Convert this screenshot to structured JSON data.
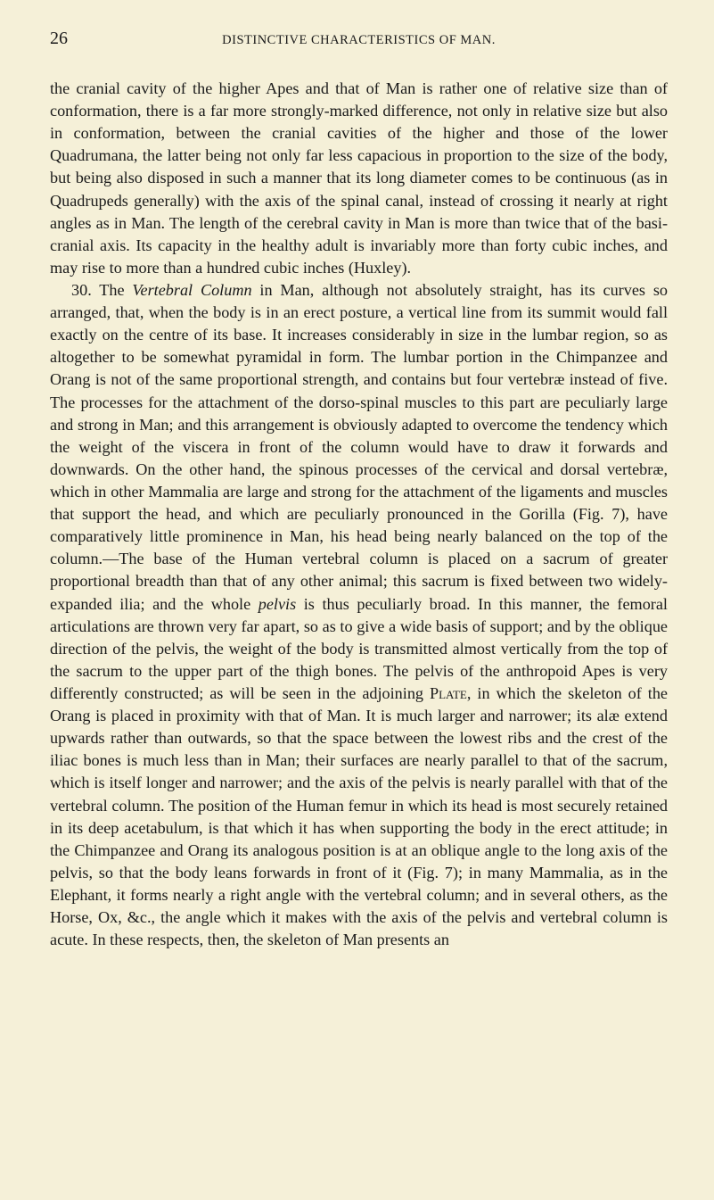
{
  "page": {
    "number": "26",
    "running_head": "DISTINCTIVE CHARACTERISTICS OF MAN.",
    "background_color": "#f5f0d8",
    "text_color": "#1a1a1a"
  },
  "paragraphs": {
    "p1": "the cranial cavity of the higher Apes and that of Man is rather one of relative size than of conformation, there is a far more strongly-marked difference, not only in relative size but also in conformation, between the cranial cavities of the higher and those of the lower Quadrumana, the latter being not only far less capacious in proportion to the size of the body, but being also disposed in such a manner that its long diameter comes to be continuous (as in Quadrupeds generally) with the axis of the spinal canal, instead of crossing it nearly at right angles as in Man. The length of the cerebral cavity in Man is more than twice that of the basi-cranial axis. Its capacity in the healthy adult is invariably more than forty cubic inches, and may rise to more than a hundred cubic inches (Huxley).",
    "p2_a": "30. The ",
    "p2_italic1": "Vertebral Column",
    "p2_b": " in Man, although not absolutely straight, has its curves so arranged, that, when the body is in an erect posture, a vertical line from its summit would fall exactly on the centre of its base. It increases considerably in size in the lumbar region, so as alto­gether to be somewhat pyramidal in form. The lumbar portion in the Chimpanzee and Orang is not of the same proportional strength, and con­tains but four vertebræ instead of five. The processes for the attachment of the dorso-spinal muscles to this part are peculiarly large and strong in Man; and this arrangement is obviously adapted to overcome the tendency which the weight of the viscera in front of the column would have to draw it forwards and downwards. On the other hand, the spinous processes of the cervical and dorsal vertebræ, which in other Mammalia are large and strong for the attachment of the ligaments and muscles that support the head, and which are peculiarly pronounced in the Gorilla (Fig. 7), have comparatively little prominence in Man, his head being nearly balanced on the top of the column.—The base of the Human vertebral column is placed on a sacrum of greater proportional breadth than that of any other animal; this sacrum is fixed between two widely-expanded ilia; and the whole ",
    "p2_italic2": "pelvis",
    "p2_c": " is thus peculiarly broad. In this manner, the femoral articulations are thrown very far apart, so as to give a wide basis of support; and by the oblique direction of the pelvis, the weight of the body is transmitted almost vertically from the top of the sacrum to the upper part of the thigh bones. The pelvis of the anthropoid Apes is very differently constructed; as will be seen in the adjoining ",
    "p2_sc1": "Plate",
    "p2_d": ", in which the skeleton of the Orang is placed in prox­imity with that of Man. It is much larger and narrower; its alæ extend upwards rather than outwards, so that the space between the lowest ribs and the crest of the iliac bones is much less than in Man; their surfaces are nearly parallel to that of the sacrum, which is itself longer and nar­rower; and the axis of the pelvis is nearly parallel with that of the vertebral column. The position of the Human femur in which its head is most securely retained in its deep acetabulum, is that which it has when supporting the body in the erect attitude; in the Chimpanzee and Orang its analogous position is at an oblique angle to the long axis of the pelvis, so that the body leans forwards in front of it (Fig. 7); in many Mammalia, as in the Elephant, it forms nearly a right angle with the vertebral column; and in several others, as the Horse, Ox, &c., the angle which it makes with the axis of the pelvis and vertebral column is acute. In these respects, then, the skeleton of Man presents an"
  },
  "typography": {
    "body_font_family": "Georgia, Times New Roman, serif",
    "body_font_size": 18.2,
    "body_line_height": 1.38,
    "page_number_font_size": 20,
    "running_head_font_size": 14.5
  }
}
